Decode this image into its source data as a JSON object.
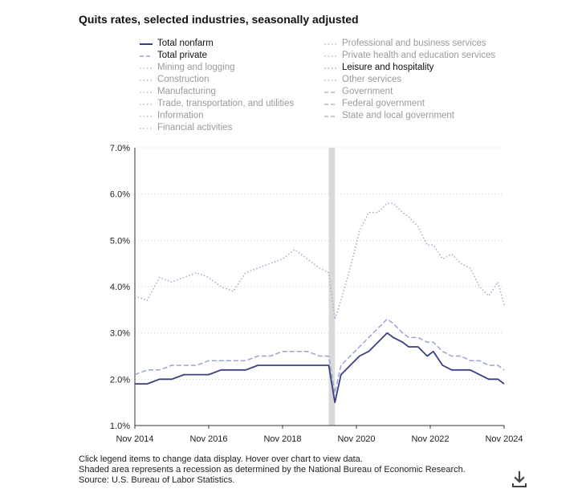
{
  "chart_data": {
    "type": "line",
    "title": "Quits rates, selected industries, seasonally adjusted",
    "xlabel": "",
    "ylabel": "",
    "x_ticks": [
      "Nov 2014",
      "Nov 2016",
      "Nov 2018",
      "Nov 2020",
      "Nov 2022",
      "Nov 2024"
    ],
    "y_ticks": [
      "1.0%",
      "2.0%",
      "3.0%",
      "4.0%",
      "5.0%",
      "6.0%",
      "7.0%"
    ],
    "ylim": [
      1.0,
      7.0
    ],
    "xlim": [
      "2014-11",
      "2024-11"
    ],
    "grid": "horizontal dotted",
    "recession_shading": {
      "start": "2020-02",
      "end": "2020-04",
      "color": "#d9d9d9"
    },
    "series": [
      {
        "name": "Total nonfarm",
        "active": true,
        "color": "#3b3f82",
        "style": "solid",
        "x": [
          "2014-11",
          "2015-03",
          "2015-07",
          "2015-11",
          "2016-03",
          "2016-07",
          "2016-11",
          "2017-03",
          "2017-07",
          "2017-11",
          "2018-03",
          "2018-07",
          "2018-11",
          "2019-03",
          "2019-07",
          "2019-11",
          "2020-02",
          "2020-04",
          "2020-06",
          "2020-09",
          "2020-12",
          "2021-03",
          "2021-06",
          "2021-09",
          "2021-11",
          "2022-02",
          "2022-04",
          "2022-07",
          "2022-10",
          "2022-12",
          "2023-03",
          "2023-06",
          "2023-09",
          "2023-12",
          "2024-03",
          "2024-06",
          "2024-09",
          "2024-11"
        ],
        "values": [
          1.9,
          1.9,
          2.0,
          2.0,
          2.1,
          2.1,
          2.1,
          2.2,
          2.2,
          2.2,
          2.3,
          2.3,
          2.3,
          2.3,
          2.3,
          2.3,
          2.3,
          1.5,
          2.1,
          2.3,
          2.5,
          2.6,
          2.8,
          3.0,
          2.9,
          2.8,
          2.7,
          2.7,
          2.5,
          2.6,
          2.3,
          2.2,
          2.2,
          2.2,
          2.1,
          2.0,
          2.0,
          1.9
        ]
      },
      {
        "name": "Total private",
        "active": true,
        "color": "#9aa3d0",
        "style": "dashed",
        "x": [
          "2014-11",
          "2015-03",
          "2015-07",
          "2015-11",
          "2016-03",
          "2016-07",
          "2016-11",
          "2017-03",
          "2017-07",
          "2017-11",
          "2018-03",
          "2018-07",
          "2018-11",
          "2019-03",
          "2019-07",
          "2019-11",
          "2020-02",
          "2020-04",
          "2020-06",
          "2020-09",
          "2020-12",
          "2021-03",
          "2021-06",
          "2021-09",
          "2021-11",
          "2022-02",
          "2022-04",
          "2022-07",
          "2022-10",
          "2022-12",
          "2023-03",
          "2023-06",
          "2023-09",
          "2023-12",
          "2024-03",
          "2024-06",
          "2024-09",
          "2024-11"
        ],
        "values": [
          2.1,
          2.2,
          2.2,
          2.3,
          2.3,
          2.3,
          2.4,
          2.4,
          2.4,
          2.4,
          2.5,
          2.5,
          2.6,
          2.6,
          2.6,
          2.5,
          2.5,
          1.7,
          2.3,
          2.5,
          2.7,
          2.9,
          3.1,
          3.3,
          3.2,
          3.0,
          2.9,
          2.9,
          2.8,
          2.8,
          2.6,
          2.5,
          2.5,
          2.4,
          2.4,
          2.3,
          2.3,
          2.2
        ]
      },
      {
        "name": "Mining and logging",
        "active": false,
        "color": "#c8c8c8",
        "style": "dotted"
      },
      {
        "name": "Construction",
        "active": false,
        "color": "#c8c8c8",
        "style": "dotted"
      },
      {
        "name": "Manufacturing",
        "active": false,
        "color": "#c8c8c8",
        "style": "dotted"
      },
      {
        "name": "Trade, transportation, and utilities",
        "active": false,
        "color": "#c8c8c8",
        "style": "dotted"
      },
      {
        "name": "Information",
        "active": false,
        "color": "#c8c8c8",
        "style": "dotted"
      },
      {
        "name": "Financial activities",
        "active": false,
        "color": "#c8c8c8",
        "style": "dotted"
      },
      {
        "name": "Professional and business services",
        "active": false,
        "color": "#c8c8c8",
        "style": "dotted"
      },
      {
        "name": "Private health and education services",
        "active": false,
        "color": "#c8c8c8",
        "style": "dotted"
      },
      {
        "name": "Leisure and hospitality",
        "active": true,
        "color": "#a7aacd",
        "style": "dotted",
        "x": [
          "2014-11",
          "2015-03",
          "2015-07",
          "2015-11",
          "2016-03",
          "2016-07",
          "2016-11",
          "2017-03",
          "2017-07",
          "2017-11",
          "2018-03",
          "2018-07",
          "2018-11",
          "2019-03",
          "2019-07",
          "2019-11",
          "2020-02",
          "2020-04",
          "2020-06",
          "2020-09",
          "2020-12",
          "2021-03",
          "2021-06",
          "2021-09",
          "2021-11",
          "2022-02",
          "2022-04",
          "2022-07",
          "2022-10",
          "2022-12",
          "2023-03",
          "2023-06",
          "2023-09",
          "2023-12",
          "2024-03",
          "2024-06",
          "2024-09",
          "2024-11"
        ],
        "values": [
          3.8,
          3.7,
          4.2,
          4.1,
          4.2,
          4.3,
          4.2,
          4.0,
          3.9,
          4.3,
          4.4,
          4.5,
          4.6,
          4.8,
          4.6,
          4.4,
          4.3,
          3.3,
          3.7,
          4.4,
          5.2,
          5.6,
          5.6,
          5.8,
          5.8,
          5.6,
          5.5,
          5.3,
          4.9,
          4.9,
          4.6,
          4.7,
          4.5,
          4.4,
          4.0,
          3.8,
          4.1,
          3.6
        ]
      },
      {
        "name": "Other services",
        "active": false,
        "color": "#c8c8c8",
        "style": "dotted"
      },
      {
        "name": "Government",
        "active": false,
        "color": "#c8c8c8",
        "style": "dashed"
      },
      {
        "name": "Federal government",
        "active": false,
        "color": "#c8c8c8",
        "style": "dashed"
      },
      {
        "name": "State and local government",
        "active": false,
        "color": "#c8c8c8",
        "style": "dashed"
      }
    ]
  },
  "notes": {
    "line1": "Click legend items to change data display. Hover over chart to view data.",
    "line2": "Shaded area represents a recession as determined by the National Bureau of Economic Research.",
    "line3": "Source: U.S. Bureau of Labor Statistics."
  },
  "download_icon": "download-icon"
}
